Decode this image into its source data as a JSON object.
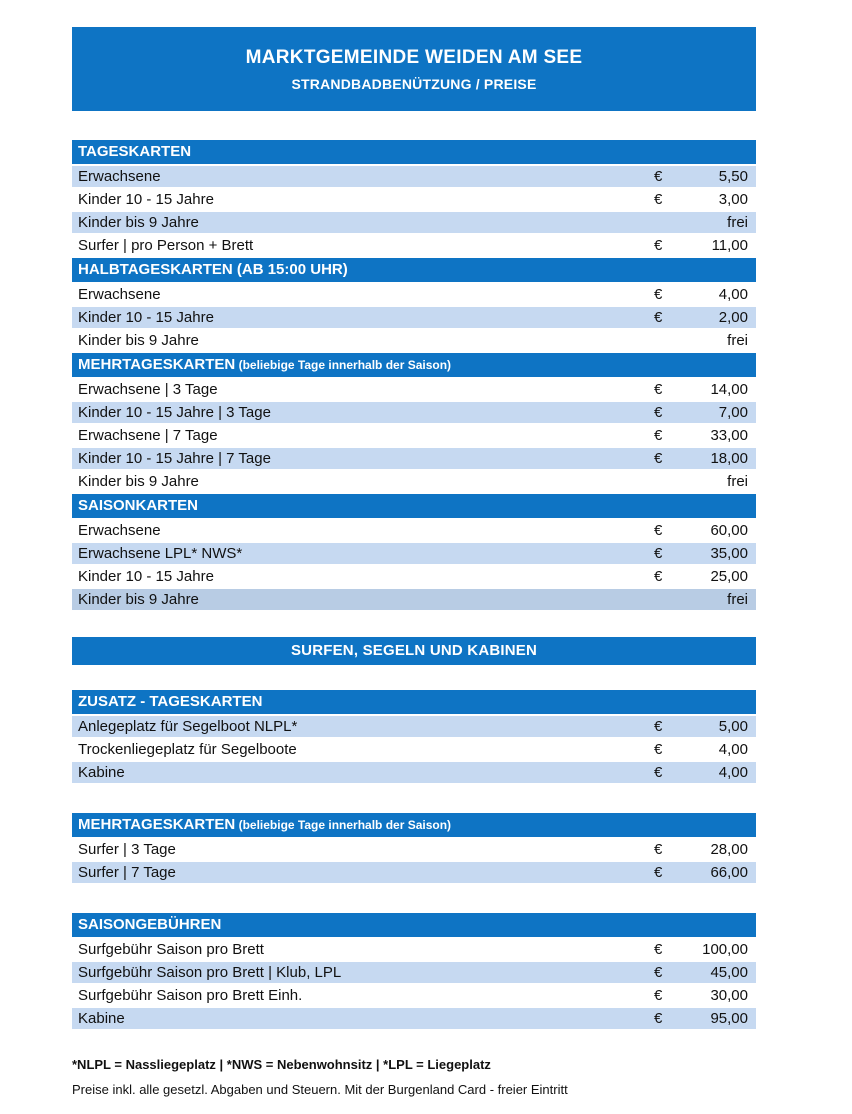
{
  "banner": {
    "title": "MARKTGEMEINDE WEIDEN AM SEE",
    "subtitle": "STRANDBADBENÜTZUNG / PREISE"
  },
  "colors": {
    "header_blue": "#0e74c4",
    "row_light_blue": "#c6d9f1",
    "row_dark_blue": "#b8cce4",
    "header_text": "#ffffff",
    "body_text": "#111111"
  },
  "main_table": {
    "sections": [
      {
        "title": "TAGESKARTEN",
        "subtitle": "",
        "rows": [
          {
            "label": "Erwachsene",
            "currency": "€",
            "value": "5,50",
            "shade": "light"
          },
          {
            "label": "Kinder 10 - 15 Jahre",
            "currency": "€",
            "value": "3,00",
            "shade": "white"
          },
          {
            "label": "Kinder bis 9 Jahre",
            "currency": "",
            "value": "frei",
            "shade": "light"
          },
          {
            "label": "Surfer | pro Person + Brett",
            "currency": "€",
            "value": "11,00",
            "shade": "white"
          }
        ]
      },
      {
        "title": "HALBTAGESKARTEN (AB 15:00 UHR)",
        "subtitle": "",
        "rows": [
          {
            "label": "Erwachsene",
            "currency": "€",
            "value": "4,00",
            "shade": "white"
          },
          {
            "label": "Kinder 10 - 15 Jahre",
            "currency": "€",
            "value": "2,00",
            "shade": "light"
          },
          {
            "label": "Kinder bis 9 Jahre",
            "currency": "",
            "value": "frei",
            "shade": "white"
          }
        ]
      },
      {
        "title": "MEHRTAGESKARTEN",
        "subtitle": "(beliebige Tage innerhalb der Saison)",
        "rows": [
          {
            "label": "Erwachsene | 3 Tage",
            "currency": "€",
            "value": "14,00",
            "shade": "white"
          },
          {
            "label": "Kinder 10 - 15 Jahre | 3 Tage",
            "currency": "€",
            "value": "7,00",
            "shade": "light"
          },
          {
            "label": "Erwachsene | 7 Tage",
            "currency": "€",
            "value": "33,00",
            "shade": "white"
          },
          {
            "label": "Kinder 10 - 15 Jahre | 7 Tage",
            "currency": "€",
            "value": "18,00",
            "shade": "light"
          },
          {
            "label": "Kinder bis 9 Jahre",
            "currency": "",
            "value": "frei",
            "shade": "white"
          }
        ]
      },
      {
        "title": "SAISONKARTEN",
        "subtitle": "",
        "rows": [
          {
            "label": "Erwachsene",
            "currency": "€",
            "value": "60,00",
            "shade": "white"
          },
          {
            "label": "Erwachsene LPL* NWS*",
            "currency": "€",
            "value": "35,00",
            "shade": "light"
          },
          {
            "label": "Kinder 10 - 15 Jahre",
            "currency": "€",
            "value": "25,00",
            "shade": "white"
          },
          {
            "label": "Kinder bis 9 Jahre",
            "currency": "",
            "value": "frei",
            "shade": "dark"
          }
        ]
      }
    ]
  },
  "divider_banner": {
    "label": "SURFEN, SEGELN UND KABINEN"
  },
  "secondary_tables": [
    {
      "title": "ZUSATZ - TAGESKARTEN",
      "subtitle": "",
      "rows": [
        {
          "label": "Anlegeplatz für Segelboot NLPL*",
          "currency": "€",
          "value": "5,00",
          "shade": "light"
        },
        {
          "label": "Trockenliegeplatz für Segelboote",
          "currency": "€",
          "value": "4,00",
          "shade": "white"
        },
        {
          "label": "Kabine",
          "currency": "€",
          "value": "4,00",
          "shade": "light"
        }
      ]
    },
    {
      "title": "MEHRTAGESKARTEN",
      "subtitle": "(beliebige Tage innerhalb der Saison)",
      "rows": [
        {
          "label": "Surfer | 3 Tage",
          "currency": "€",
          "value": "28,00",
          "shade": "white"
        },
        {
          "label": "Surfer | 7 Tage",
          "currency": "€",
          "value": "66,00",
          "shade": "light"
        }
      ]
    },
    {
      "title": "SAISONGEBÜHREN",
      "subtitle": "",
      "rows": [
        {
          "label": "Surfgebühr Saison pro Brett",
          "currency": "€",
          "value": "100,00",
          "shade": "white"
        },
        {
          "label": "Surfgebühr Saison pro Brett | Klub, LPL",
          "currency": "€",
          "value": "45,00",
          "shade": "light"
        },
        {
          "label": "Surfgebühr Saison pro Brett Einh.",
          "currency": "€",
          "value": "30,00",
          "shade": "white"
        },
        {
          "label": "Kabine",
          "currency": "€",
          "value": "95,00",
          "shade": "light"
        }
      ]
    }
  ],
  "footnotes": {
    "legend": "*NLPL = Nassliegeplatz | *NWS = Nebenwohnsitz | *LPL = Liegeplatz",
    "note": "Preise inkl. alle gesetzl. Abgaben und Steuern. Mit der Burgenland Card - freier Eintritt"
  }
}
